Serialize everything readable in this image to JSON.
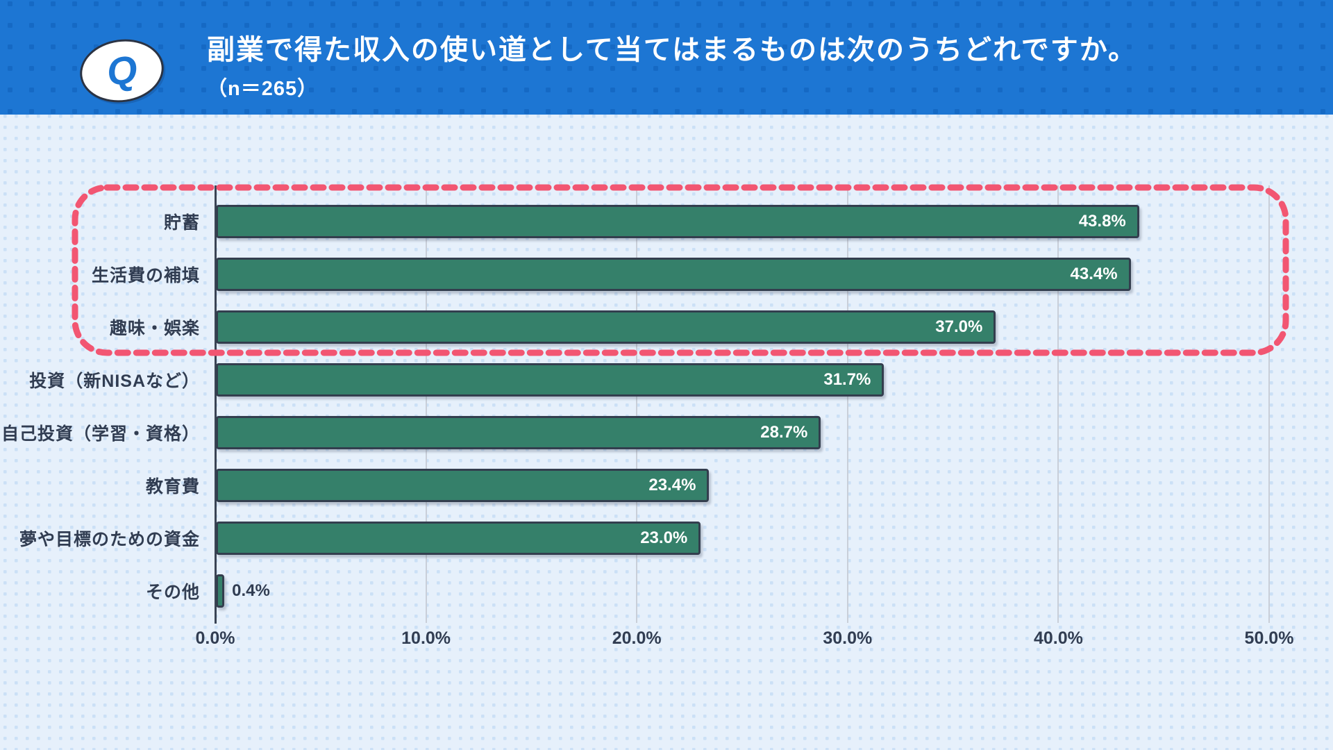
{
  "header": {
    "badge": "Q",
    "title": "副業で得た収入の使い道として当てはまるものは次のうちどれですか。",
    "subtitle": "（n＝265）"
  },
  "chart_data": {
    "type": "bar",
    "orientation": "horizontal",
    "title": "副業で得た収入の使い道として当てはまるものは次のうちどれですか。（n＝265）",
    "categories": [
      "貯蓄",
      "生活費の補填",
      "趣味・娯楽",
      "投資（新NISAなど）",
      "自己投資（学習・資格）",
      "教育費",
      "夢や目標のための資金",
      "その他"
    ],
    "values": [
      43.8,
      43.4,
      37.0,
      31.7,
      28.7,
      23.4,
      23.0,
      0.4
    ],
    "value_labels": [
      "43.8%",
      "43.4%",
      "37.0%",
      "31.7%",
      "28.7%",
      "23.4%",
      "23.0%",
      "0.4%"
    ],
    "x_ticks": [
      "0.0%",
      "10.0%",
      "20.0%",
      "30.0%",
      "40.0%",
      "50.0%"
    ],
    "xlim": [
      0,
      50
    ],
    "grid": true,
    "legend": "none",
    "highlight_top_n": 3,
    "colors": {
      "header_bg": "#1d76d3",
      "header_dot": "#1569c4",
      "body_bg": "#e6f0fb",
      "body_dot": "#cbe0f6",
      "bar_fill": "#35806a",
      "bar_border": "#333e4e",
      "highlight_border": "#f25672",
      "text_dark": "#313d52",
      "value_in_bar": "#ffffff"
    }
  }
}
